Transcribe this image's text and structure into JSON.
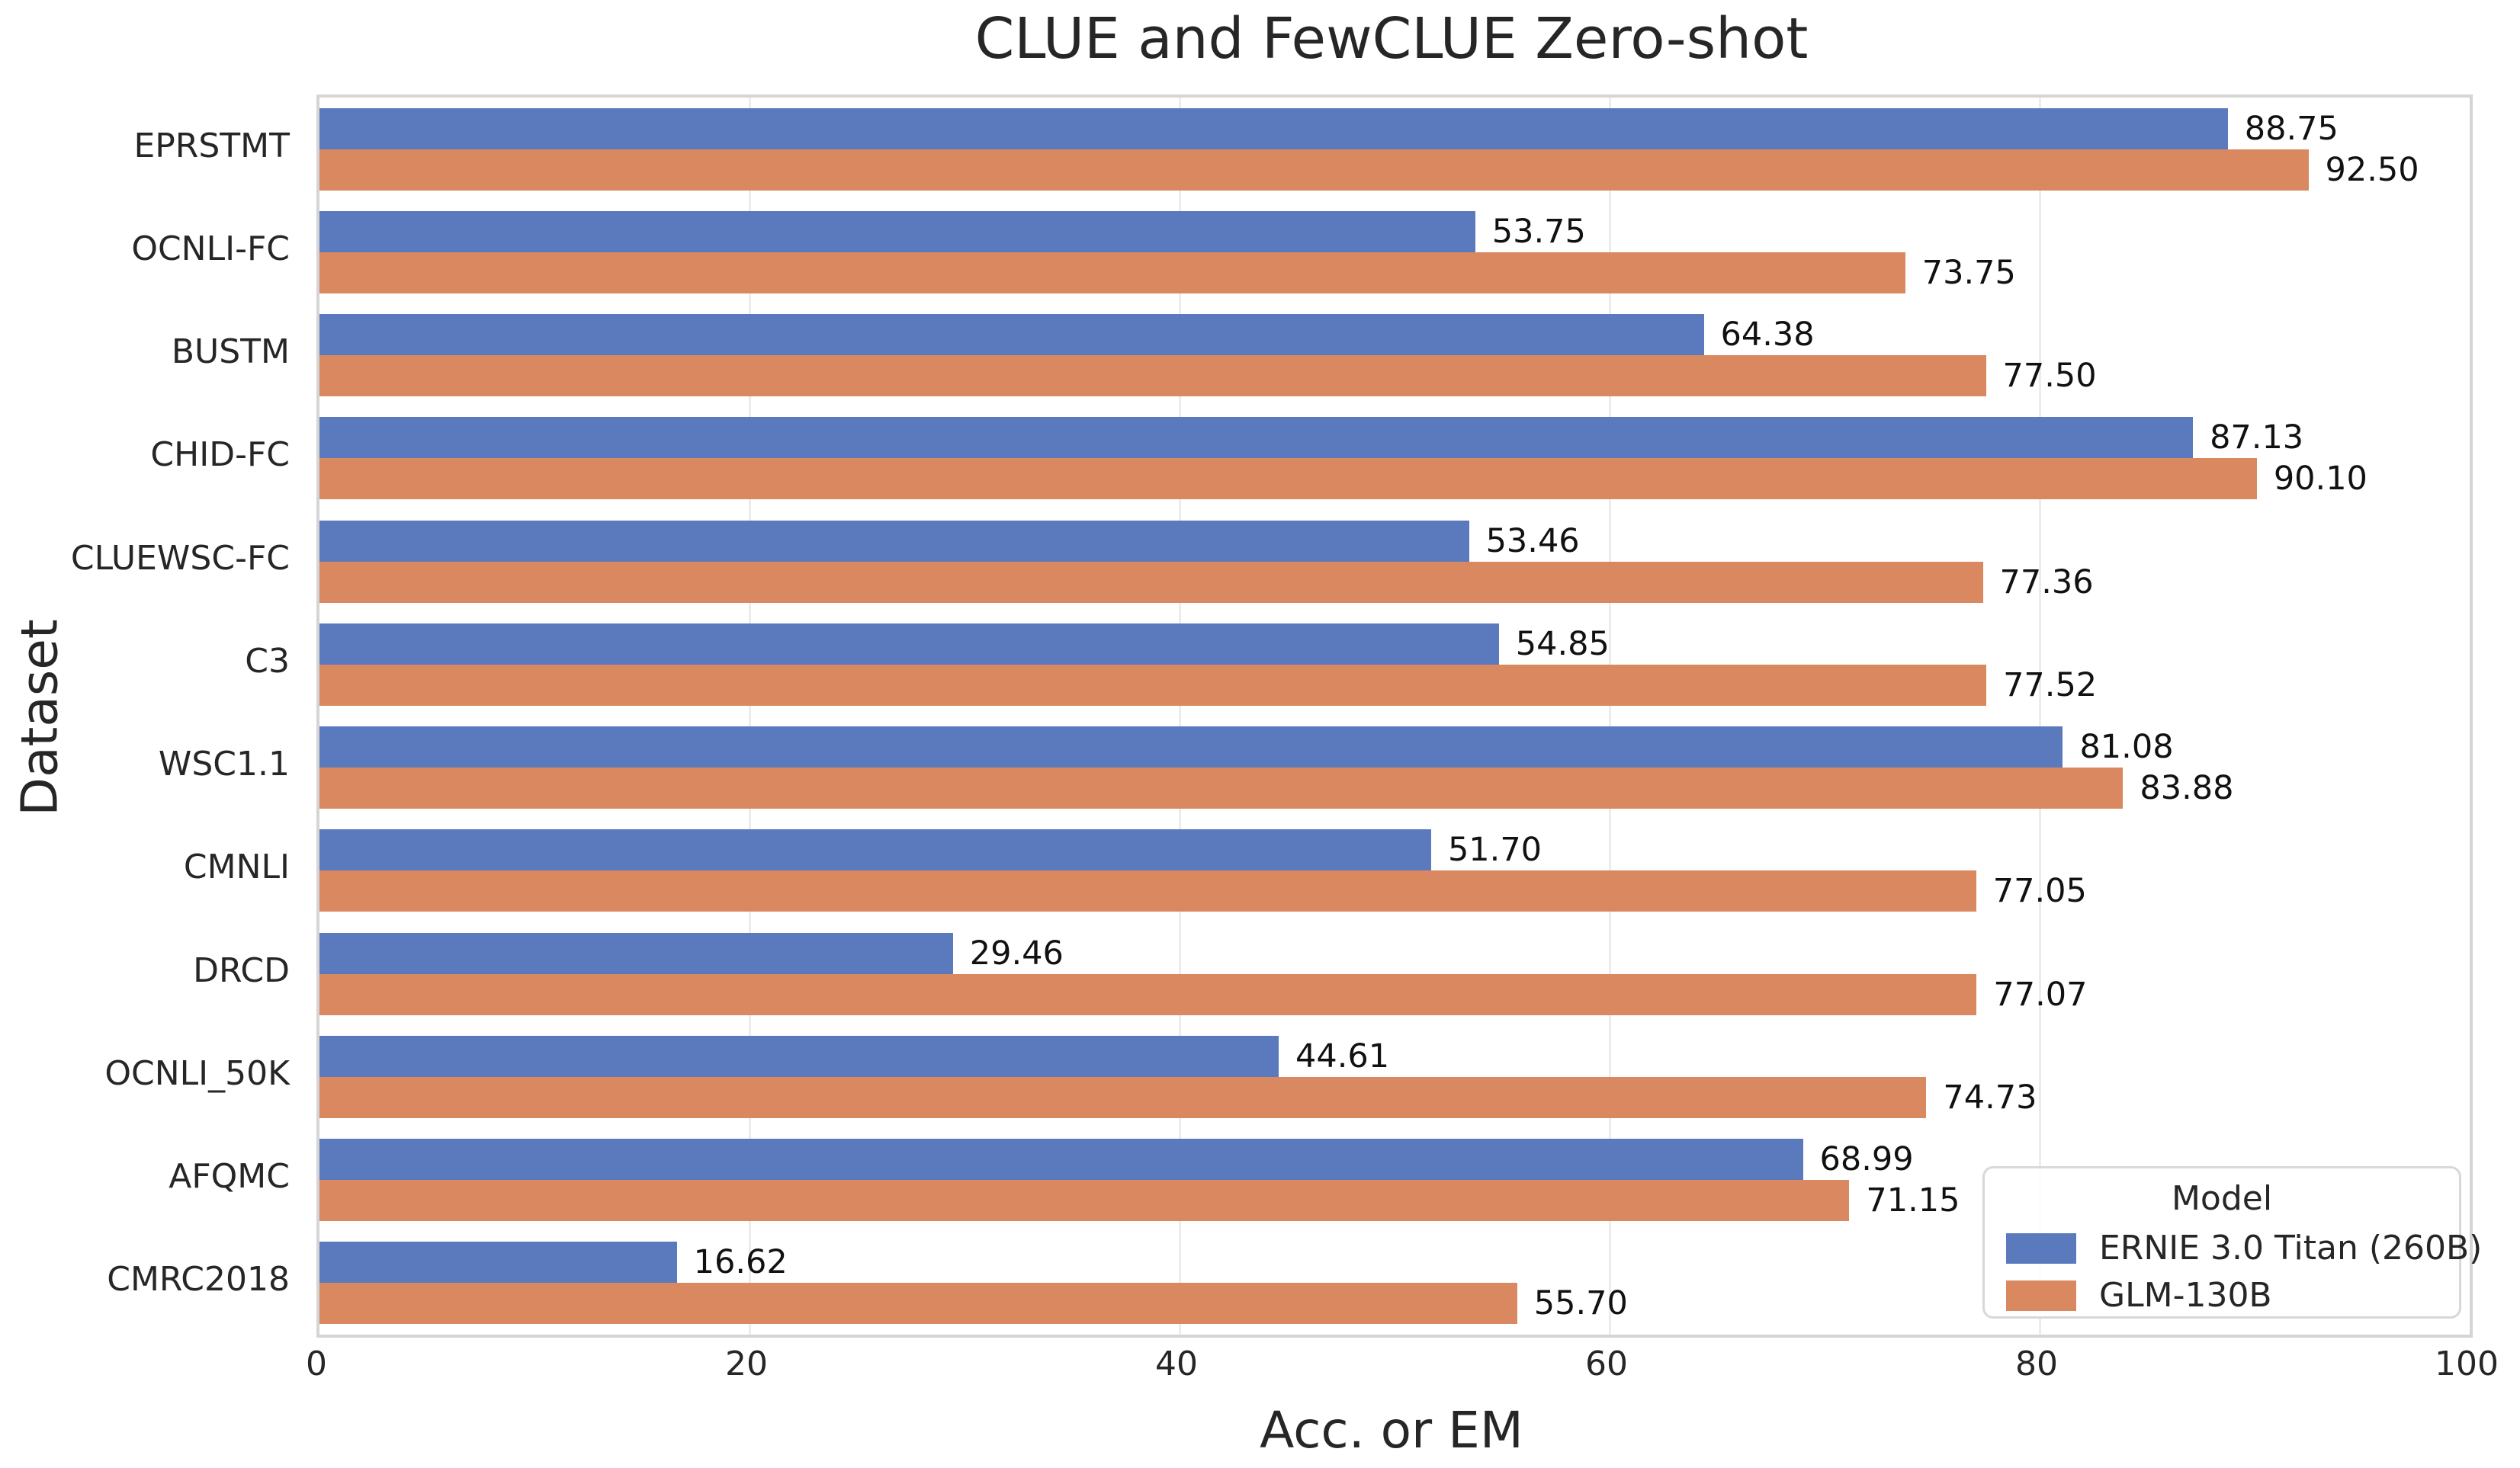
{
  "chart_data": {
    "type": "bar",
    "orientation": "horizontal",
    "title": "CLUE and FewCLUE Zero-shot",
    "xlabel": "Acc. or EM",
    "ylabel": "Dataset",
    "xlim": [
      0,
      100
    ],
    "xticks": [
      0,
      20,
      40,
      60,
      80,
      100
    ],
    "grid": true,
    "value_labels": true,
    "categories": [
      "EPRSTMT",
      "OCNLI-FC",
      "BUSTM",
      "CHID-FC",
      "CLUEWSC-FC",
      "C3",
      "WSC1.1",
      "CMNLI",
      "DRCD",
      "OCNLI_50K",
      "AFQMC",
      "CMRC2018"
    ],
    "series": [
      {
        "name": "ERNIE 3.0 Titan (260B)",
        "color": "#5a7abd",
        "values": [
          88.75,
          53.75,
          64.38,
          87.13,
          53.46,
          54.85,
          81.08,
          51.7,
          29.46,
          44.61,
          68.99,
          16.62
        ]
      },
      {
        "name": "GLM-130B",
        "color": "#d9885f",
        "values": [
          92.5,
          73.75,
          77.5,
          90.1,
          77.36,
          77.52,
          83.88,
          77.05,
          77.07,
          74.73,
          71.15,
          55.7
        ]
      }
    ],
    "legend": {
      "title": "Model",
      "position": "lower right"
    }
  }
}
